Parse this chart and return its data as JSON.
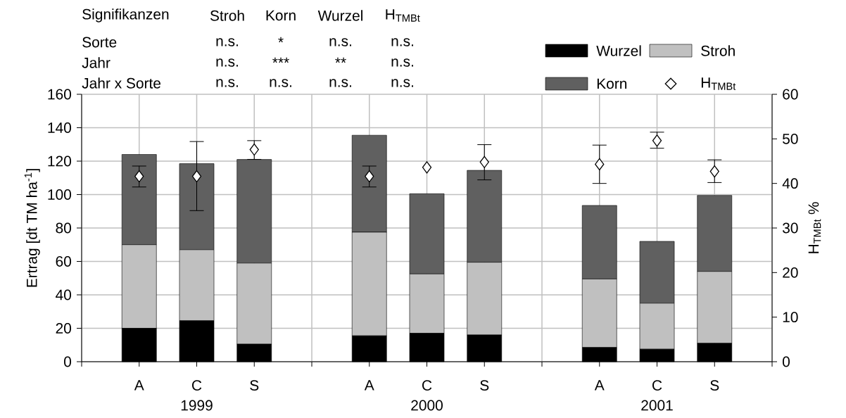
{
  "chart_data": {
    "type": "bar",
    "stacked": true,
    "grid": true,
    "legend": "top right",
    "marker": "diamond",
    "categories": [
      "A",
      "C",
      "S",
      null,
      "A",
      "C",
      "S",
      null,
      "A",
      "C",
      "S"
    ],
    "ylabel": "Ertrag [dt TM ha$^{-1}$]",
    "y2label": "H$_{TMBt}$ %",
    "ylim": [
      0,
      160
    ],
    "yticks": [
      0,
      20,
      40,
      60,
      80,
      100,
      120,
      140,
      160
    ],
    "y2lim": [
      0,
      60
    ],
    "y2ticks": [
      0,
      10,
      20,
      30,
      40,
      50,
      60
    ],
    "series": [
      {
        "name": "Wurzel",
        "color": "#000000",
        "values": [
          20,
          24.5,
          10.5,
          null,
          15.5,
          17,
          16,
          null,
          8.5,
          7.5,
          11
        ]
      },
      {
        "name": "Stroh",
        "color": "#c0c0c0",
        "values": [
          50,
          42.5,
          48.5,
          null,
          62,
          35.5,
          43.5,
          null,
          41,
          27.5,
          43
        ]
      },
      {
        "name": "Korn",
        "color": "#606060",
        "values": [
          54,
          51.5,
          62,
          null,
          58,
          48,
          55,
          null,
          44,
          37,
          45.5
        ]
      },
      {
        "name": "H$_{TMBt}$",
        "type": "scatter",
        "axis": "y2",
        "color": "#000000",
        "values": [
          41.6,
          41.6,
          47.6,
          null,
          41.6,
          43.6,
          44.8,
          null,
          44.3,
          49.6,
          42.7
        ],
        "errors": [
          [
            39.2,
            43.9
          ],
          [
            33.9,
            49.4
          ],
          [
            45.4,
            49.6
          ],
          null,
          [
            39.2,
            43.9
          ],
          null,
          [
            40.8,
            48.7
          ],
          null,
          [
            40,
            48.6
          ],
          [
            47.9,
            51.5
          ],
          [
            40.2,
            45.3
          ]
        ]
      }
    ],
    "annotations": [
      "Signifikanzen",
      "Stroh",
      "Korn",
      "Wurzel",
      "H$_{TMBt}$",
      "Sorte",
      "n.s.",
      "*",
      "n.s.",
      "n.s.",
      "Jahr",
      "n.s.",
      "***",
      "**",
      "n.s.",
      "Jahr x Sorte",
      "n.s.",
      "n.s.",
      "n.s.",
      "n.s.",
      "1999",
      "2000",
      "2001"
    ]
  }
}
